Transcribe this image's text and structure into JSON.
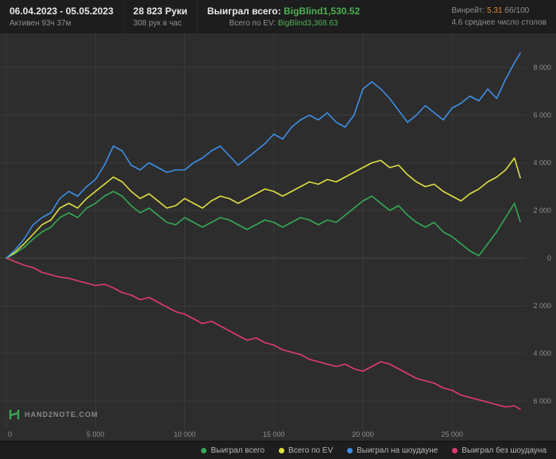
{
  "header": {
    "date_range": "06.04.2023 - 05.05.2023",
    "active_time": "Активен 93ч 37м",
    "hands_total": "28 823 Руки",
    "hands_per_hour": "308 рук в час",
    "won_total_label": "Выиграл всего: ",
    "won_total_value": "BigBlind1,530.52",
    "ev_total_label": "Всего по EV: ",
    "ev_total_value": "BigBlind3,368.63",
    "winrate_label": "Винрейт: ",
    "winrate_value": "5.31",
    "winrate_units": " бб/100",
    "avg_tables": "4.6 среднее число столов"
  },
  "logo": {
    "text": "HAND2NOTE.COM"
  },
  "colors": {
    "won_green": "#35a854",
    "ev_yellow": "#dede42",
    "showdown_blue": "#3d8fe6",
    "nonshowdown_pink": "#e33a70",
    "accent_green_text": "#4db052",
    "accent_orange_text": "#de8a3a",
    "grid": "#3a3a3a",
    "background": "#2d2d2d",
    "bar_background": "#1d1d1d"
  },
  "legend": [
    {
      "label": "Выиграл всего",
      "color": "#35a854"
    },
    {
      "label": "Всего по EV",
      "color": "#dede42"
    },
    {
      "label": "Выиграл на шоудауне",
      "color": "#3d8fe6"
    },
    {
      "label": "Выиграл без шоудауна",
      "color": "#e33a70"
    }
  ],
  "chart_data": {
    "type": "line",
    "title": "",
    "xlabel": "",
    "ylabel": "",
    "xlim": [
      0,
      28823
    ],
    "ylim": [
      -7000,
      9400
    ],
    "grid": true,
    "legend_position": "bottom",
    "x_ticks": [
      0,
      5000,
      10000,
      15000,
      20000,
      25000
    ],
    "x_tick_labels": [
      "0",
      "5 000",
      "10 000",
      "15 000",
      "20 000",
      "25 000"
    ],
    "y_ticks": [
      8000,
      6000,
      4000,
      2000,
      0,
      -2000,
      -4000,
      -6000
    ],
    "y_tick_labels": [
      "8 000",
      "6 000",
      "4 000",
      "2 000",
      "0",
      "2 000",
      "4 000",
      "6 000"
    ],
    "x": [
      0,
      500,
      1000,
      1500,
      2000,
      2500,
      3000,
      3500,
      4000,
      4500,
      5000,
      5500,
      6000,
      6500,
      7000,
      7500,
      8000,
      8500,
      9000,
      9500,
      10000,
      10500,
      11000,
      11500,
      12000,
      12500,
      13000,
      13500,
      14000,
      14500,
      15000,
      15500,
      16000,
      16500,
      17000,
      17500,
      18000,
      18500,
      19000,
      19500,
      20000,
      20500,
      21000,
      21500,
      22000,
      22500,
      23000,
      23500,
      24000,
      24500,
      25000,
      25500,
      26000,
      26500,
      27000,
      27500,
      28000,
      28500,
      28823
    ],
    "series": [
      {
        "name": "Выиграл всего",
        "color": "#35a854",
        "final_value": 1530.52,
        "values": [
          0,
          200,
          450,
          800,
          1100,
          1300,
          1700,
          1900,
          1700,
          2100,
          2300,
          2600,
          2800,
          2600,
          2200,
          1900,
          2100,
          1800,
          1500,
          1400,
          1700,
          1500,
          1300,
          1500,
          1700,
          1600,
          1400,
          1200,
          1400,
          1600,
          1500,
          1300,
          1500,
          1700,
          1600,
          1400,
          1600,
          1500,
          1800,
          2100,
          2400,
          2600,
          2300,
          2000,
          2200,
          1800,
          1500,
          1300,
          1500,
          1100,
          900,
          600,
          300,
          100,
          600,
          1100,
          1700,
          2300,
          1530.52
        ]
      },
      {
        "name": "Всего по EV",
        "color": "#dede42",
        "final_value": 3368.63,
        "values": [
          0,
          250,
          600,
          1000,
          1400,
          1600,
          2100,
          2300,
          2100,
          2500,
          2800,
          3100,
          3400,
          3200,
          2800,
          2500,
          2700,
          2400,
          2100,
          2200,
          2500,
          2300,
          2100,
          2400,
          2600,
          2500,
          2300,
          2500,
          2700,
          2900,
          2800,
          2600,
          2800,
          3000,
          3200,
          3100,
          3300,
          3200,
          3400,
          3600,
          3800,
          4000,
          4100,
          3800,
          3900,
          3500,
          3200,
          3000,
          3100,
          2800,
          2600,
          2400,
          2700,
          2900,
          3200,
          3400,
          3700,
          4200,
          3368.63
        ]
      },
      {
        "name": "Выиграл на шоудауне",
        "color": "#3d8fe6",
        "final_value": 8600,
        "values": [
          0,
          350,
          800,
          1400,
          1700,
          1900,
          2500,
          2800,
          2600,
          3000,
          3300,
          3900,
          4700,
          4500,
          3900,
          3700,
          4000,
          3800,
          3600,
          3700,
          3700,
          4000,
          4200,
          4500,
          4700,
          4300,
          3900,
          4200,
          4500,
          4800,
          5200,
          5000,
          5500,
          5800,
          6000,
          5800,
          6100,
          5700,
          5500,
          6000,
          7100,
          7400,
          7100,
          6700,
          6200,
          5700,
          6000,
          6400,
          6100,
          5800,
          6300,
          6500,
          6800,
          6600,
          7100,
          6700,
          7500,
          8200,
          8600
        ]
      },
      {
        "name": "Выиграл без шоудауна",
        "color": "#e33a70",
        "final_value": -6350,
        "values": [
          0,
          -150,
          -300,
          -400,
          -600,
          -700,
          -800,
          -850,
          -950,
          -1050,
          -1150,
          -1100,
          -1250,
          -1450,
          -1550,
          -1750,
          -1650,
          -1850,
          -2050,
          -2250,
          -2350,
          -2550,
          -2750,
          -2650,
          -2850,
          -3050,
          -3250,
          -3450,
          -3350,
          -3550,
          -3650,
          -3850,
          -3950,
          -4050,
          -4250,
          -4350,
          -4450,
          -4550,
          -4450,
          -4650,
          -4750,
          -4550,
          -4350,
          -4450,
          -4650,
          -4850,
          -5050,
          -5150,
          -5250,
          -5450,
          -5550,
          -5750,
          -5850,
          -5950,
          -6050,
          -6150,
          -6250,
          -6200,
          -6350
        ]
      }
    ]
  }
}
